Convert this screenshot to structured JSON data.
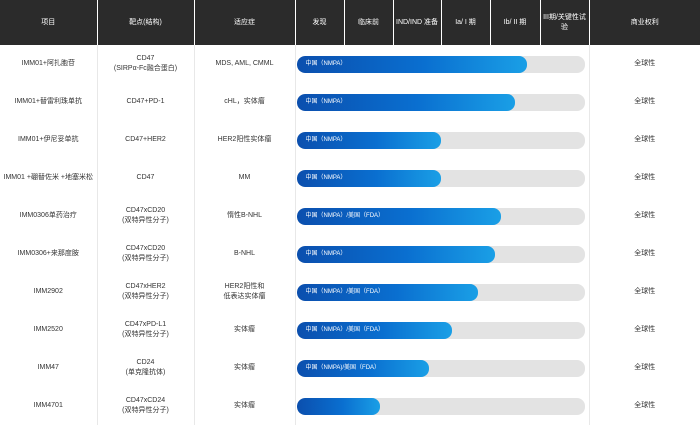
{
  "header": [
    "项目",
    "靶点(结构)",
    "适应症",
    "发现",
    "临床前",
    "IND/IND 准备",
    "Ia/ I 期",
    "Ib/ II 期",
    "III期/关键性试验",
    "商业权利"
  ],
  "rows": [
    {
      "project": "IMM01+阿扎胞苷",
      "target": "CD47\n(SIRPα-Fc融合蛋白)",
      "indication": "MDS, AML, CMML",
      "bar_label": "中国（NMPA）",
      "progress": 0.8,
      "rights": "全球性"
    },
    {
      "project": "IMM01+替雷利珠单抗",
      "target": "CD47+PD-1",
      "indication": "cHL，实体瘤",
      "bar_label": "中国（NMPA）",
      "progress": 0.76,
      "rights": "全球性"
    },
    {
      "project": "IMM01+伊尼妥单抗",
      "target": "CD47+HER2",
      "indication": "HER2阳性实体瘤",
      "bar_label": "中国（NMPA）",
      "progress": 0.5,
      "rights": "全球性"
    },
    {
      "project": "IMM01 +硼替佐米 +地塞米松",
      "target": "CD47",
      "indication": "MM",
      "bar_label": "中国（NMPA）",
      "progress": 0.5,
      "rights": "全球性"
    },
    {
      "project": "IMM0306单药治疗",
      "target": "CD47xCD20\n(双特异性分子)",
      "indication": "惰性B-NHL",
      "bar_label": "中国（NMPA）/美国（FDA）",
      "progress": 0.71,
      "rights": "全球性"
    },
    {
      "project": "IMM0306+来那度胺",
      "target": "CD47xCD20\n(双特异性分子)",
      "indication": "B-NHL",
      "bar_label": "中国（NMPA）",
      "progress": 0.69,
      "rights": "全球性"
    },
    {
      "project": "IMM2902",
      "target": "CD47xHER2\n(双特异性分子)",
      "indication": "HER2阳性和\n低表达实体瘤",
      "bar_label": "中国（NMPA）/美国（FDA）",
      "progress": 0.63,
      "rights": "全球性"
    },
    {
      "project": "IMM2520",
      "target": "CD47xPD-L1\n(双特异性分子)",
      "indication": "实体瘤",
      "bar_label": "中国（NMPA）/美国（FDA）",
      "progress": 0.54,
      "rights": "全球性"
    },
    {
      "project": "IMM47",
      "target": "CD24\n(单克隆抗体)",
      "indication": "实体瘤",
      "bar_label": "中国（NMPA)/美国（FDA）",
      "progress": 0.46,
      "rights": "全球性"
    },
    {
      "project": "IMM4701",
      "target": "CD47xCD24\n(双特异性分子)",
      "indication": "实体瘤",
      "bar_label": "",
      "progress": 0.29,
      "rights": "全球性"
    }
  ]
}
